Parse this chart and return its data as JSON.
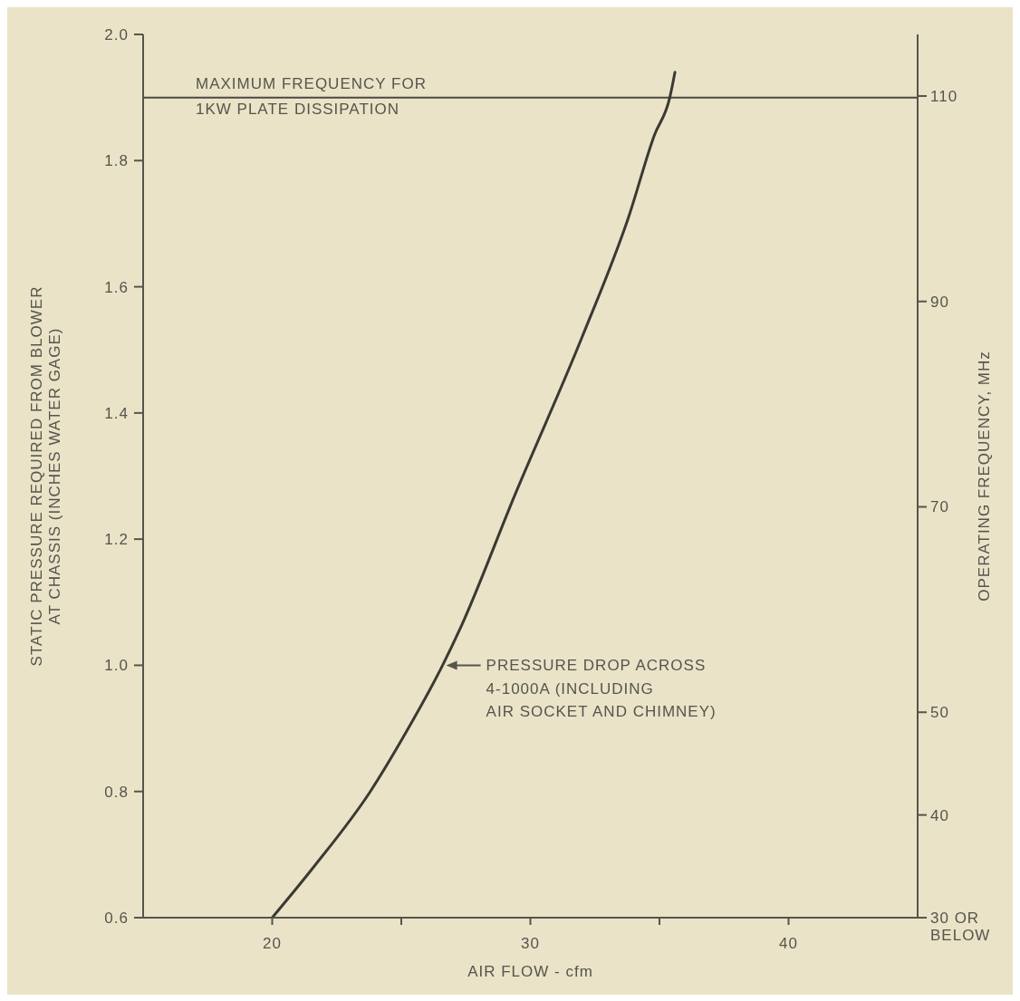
{
  "chart_data": {
    "type": "line",
    "xlabel": "AIR FLOW - cfm",
    "ylabel": "STATIC PRESSURE REQUIRED FROM BLOWER\nAT CHASSIS (INCHES WATER GAGE)",
    "y2label": "OPERATING FREQUENCY, MHz",
    "x": [
      20.0,
      21.6,
      23.8,
      25.2,
      26.6,
      27.3,
      29.4,
      32.0,
      33.8,
      34.8,
      35.4,
      35.6
    ],
    "series": [
      {
        "color": "#3a3a32",
        "values": [
          0.6,
          0.68,
          0.8,
          0.895,
          1.0,
          1.06,
          1.27,
          1.52,
          1.71,
          1.84,
          1.9,
          1.94
        ]
      }
    ],
    "xlim": [
      15,
      45
    ],
    "xticks": [
      20,
      {
        "value": 25,
        "label": null
      },
      30,
      {
        "value": 35,
        "label": null
      },
      40
    ],
    "ylim": [
      0.6,
      2.0
    ],
    "yticks": [
      0.6,
      0.8,
      {
        "value": 1.0,
        "label": "1.0"
      },
      1.2,
      1.4,
      1.6,
      1.8,
      {
        "value": 2.0,
        "label": "2.0"
      }
    ],
    "y2lim": [
      30,
      116
    ],
    "y2ticks": [
      {
        "value": 30,
        "label": "30 OR\nBELOW"
      },
      40,
      50,
      70,
      90,
      110
    ],
    "ref_lines": [
      {
        "axis": "y",
        "value": 1.9,
        "label": "MAXIMUM FREQUENCY FOR\n1KW PLATE DISSIPATION",
        "color": "#4a4a42"
      }
    ],
    "annotations": [
      {
        "text": "PRESSURE DROP ACROSS\n4-1000A (INCLUDING\nAIR SOCKET AND CHIMNEY)",
        "x": 26.6,
        "y": 1.0
      }
    ],
    "grid": false,
    "legend": false,
    "marker": "none",
    "line_style": "solid"
  }
}
